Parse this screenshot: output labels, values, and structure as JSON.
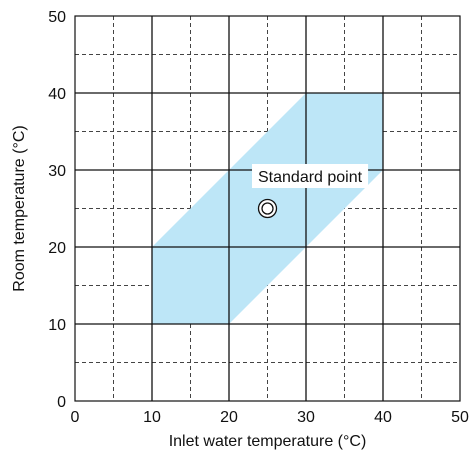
{
  "chart_data": {
    "type": "area",
    "xlabel": "Inlet water temperature (°C)",
    "ylabel": "Room temperature (°C)",
    "xlim": [
      0,
      50
    ],
    "ylim": [
      0,
      50
    ],
    "major_ticks": [
      0,
      10,
      20,
      30,
      40,
      50
    ],
    "minor_grid_values": [
      5,
      15,
      25,
      35,
      45
    ],
    "grid": true,
    "region": {
      "fill": "#bde6f7",
      "points": [
        [
          10,
          10
        ],
        [
          20,
          10
        ],
        [
          40,
          30
        ],
        [
          40,
          40
        ],
        [
          30,
          40
        ],
        [
          10,
          20
        ]
      ]
    },
    "standard_point": {
      "x": 25,
      "y": 25
    },
    "annotation": "Standard point",
    "colors": {
      "axis": "#111111",
      "grid_major": "#111111",
      "grid_minor": "#444444"
    }
  }
}
